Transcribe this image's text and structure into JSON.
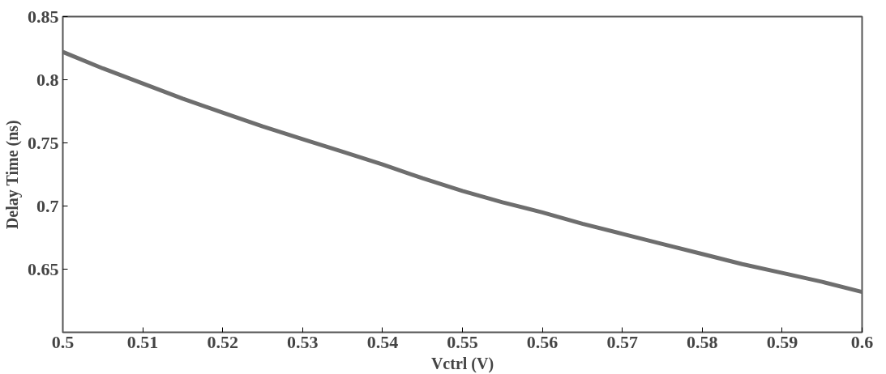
{
  "chart_data": {
    "type": "line",
    "xlabel": "Vctrl (V)",
    "ylabel": "Delay Time (ns)",
    "x": [
      0.5,
      0.505,
      0.51,
      0.515,
      0.52,
      0.525,
      0.53,
      0.535,
      0.54,
      0.545,
      0.55,
      0.555,
      0.56,
      0.565,
      0.57,
      0.575,
      0.58,
      0.585,
      0.59,
      0.595,
      0.6
    ],
    "series": [
      {
        "color": "#6e6e6e",
        "values": [
          0.822,
          0.809,
          0.797,
          0.785,
          0.774,
          0.763,
          0.753,
          0.743,
          0.733,
          0.722,
          0.712,
          0.703,
          0.695,
          0.686,
          0.678,
          0.67,
          0.662,
          0.654,
          0.647,
          0.64,
          0.632
        ]
      }
    ],
    "xlim": [
      0.5,
      0.6
    ],
    "ylim": [
      0.6,
      0.85
    ],
    "xticks": [
      0.5,
      0.51,
      0.52,
      0.53,
      0.54,
      0.55,
      0.56,
      0.57,
      0.58,
      0.59,
      0.6
    ],
    "yticks": [
      0.65,
      0.7,
      0.75,
      0.8,
      0.85
    ],
    "grid": false,
    "marker": "none",
    "line_style": "solid"
  }
}
